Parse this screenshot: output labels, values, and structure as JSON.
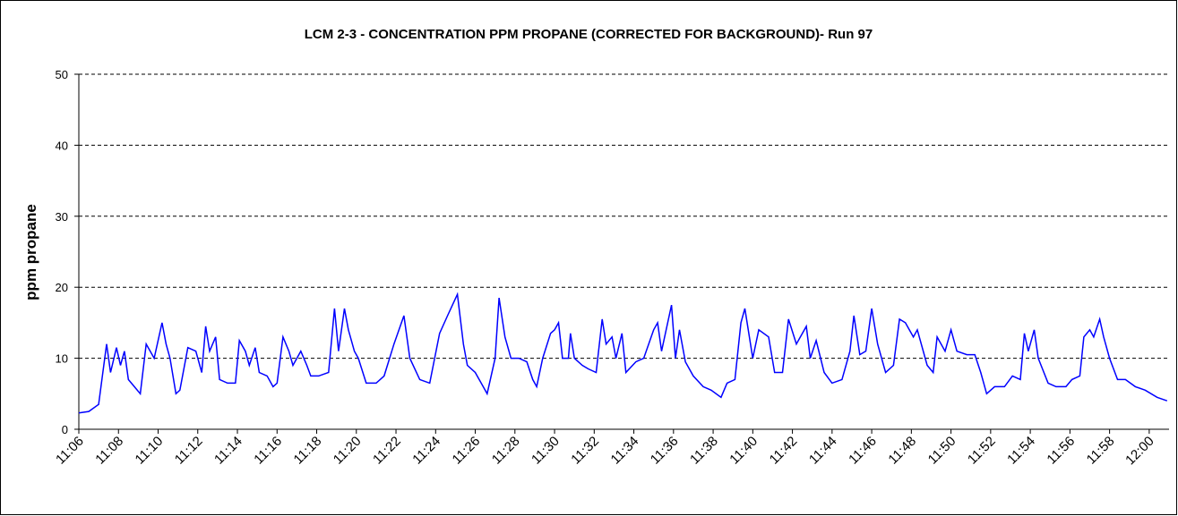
{
  "chart_data": {
    "type": "line",
    "title": "LCM 2-3 - CONCENTRATION PPM PROPANE (CORRECTED FOR BACKGROUND)- Run 97",
    "ylabel": "ppm propane",
    "color": "#0000ff",
    "grid": true,
    "ylim": [
      0,
      50
    ],
    "yticks": [
      0,
      10,
      20,
      30,
      40,
      50
    ],
    "xlim": [
      666,
      721
    ],
    "xticks": [
      {
        "value": 666,
        "label": "11:06"
      },
      {
        "value": 668,
        "label": "11:08"
      },
      {
        "value": 670,
        "label": "11:10"
      },
      {
        "value": 672,
        "label": "11:12"
      },
      {
        "value": 674,
        "label": "11:14"
      },
      {
        "value": 676,
        "label": "11:16"
      },
      {
        "value": 678,
        "label": "11:18"
      },
      {
        "value": 680,
        "label": "11:20"
      },
      {
        "value": 682,
        "label": "11:22"
      },
      {
        "value": 684,
        "label": "11:24"
      },
      {
        "value": 686,
        "label": "11:26"
      },
      {
        "value": 688,
        "label": "11:28"
      },
      {
        "value": 690,
        "label": "11:30"
      },
      {
        "value": 692,
        "label": "11:32"
      },
      {
        "value": 694,
        "label": "11:34"
      },
      {
        "value": 696,
        "label": "11:36"
      },
      {
        "value": 698,
        "label": "11:38"
      },
      {
        "value": 700,
        "label": "11:40"
      },
      {
        "value": 702,
        "label": "11:42"
      },
      {
        "value": 704,
        "label": "11:44"
      },
      {
        "value": 706,
        "label": "11:46"
      },
      {
        "value": 708,
        "label": "11:48"
      },
      {
        "value": 710,
        "label": "11:50"
      },
      {
        "value": 712,
        "label": "11:52"
      },
      {
        "value": 714,
        "label": "11:54"
      },
      {
        "value": 716,
        "label": "11:56"
      },
      {
        "value": 718,
        "label": "11:58"
      },
      {
        "value": 720,
        "label": "12:00"
      }
    ],
    "x": [
      666,
      666.5,
      667,
      667.4,
      667.6,
      667.9,
      668.1,
      668.3,
      668.5,
      668.8,
      669.1,
      669.4,
      669.8,
      670.2,
      670.4,
      670.6,
      670.9,
      671.1,
      671.5,
      671.9,
      672.2,
      672.4,
      672.6,
      672.9,
      673.1,
      673.5,
      673.9,
      674.1,
      674.4,
      674.6,
      674.9,
      675.1,
      675.5,
      675.8,
      676,
      676.3,
      676.6,
      676.8,
      677.2,
      677.5,
      677.7,
      678.1,
      678.6,
      678.9,
      679.1,
      679.4,
      679.6,
      679.9,
      680.1,
      680.5,
      681,
      681.4,
      681.9,
      682.4,
      682.7,
      683.2,
      683.7,
      684.2,
      684.6,
      685.1,
      685.4,
      685.6,
      686,
      686.4,
      686.6,
      687,
      687.2,
      687.5,
      687.8,
      688.2,
      688.6,
      688.9,
      689.1,
      689.4,
      689.8,
      690,
      690.2,
      690.4,
      690.7,
      690.8,
      691,
      691.4,
      691.7,
      692.1,
      692.4,
      692.6,
      692.9,
      693.1,
      693.4,
      693.6,
      694.1,
      694.5,
      695,
      695.2,
      695.4,
      695.9,
      696.1,
      696.3,
      696.6,
      697,
      697.5,
      697.9,
      698.4,
      698.7,
      699.1,
      699.4,
      699.6,
      700,
      700.3,
      700.8,
      701.1,
      701.5,
      701.8,
      702.2,
      702.7,
      702.9,
      703.2,
      703.6,
      704,
      704.5,
      704.9,
      705.1,
      705.4,
      705.7,
      706,
      706.3,
      706.7,
      707.1,
      707.4,
      707.7,
      708.1,
      708.3,
      708.8,
      709.1,
      709.3,
      709.7,
      710,
      710.3,
      710.8,
      711.2,
      711.5,
      711.8,
      712.2,
      712.7,
      713.1,
      713.5,
      713.7,
      713.9,
      714.2,
      714.4,
      714.9,
      715.3,
      715.8,
      716.1,
      716.5,
      716.7,
      717,
      717.2,
      717.5,
      717.7,
      718,
      718.4,
      718.8,
      719.3,
      719.8,
      720.4,
      720.9
    ],
    "values": [
      2.3,
      2.5,
      3.5,
      12,
      8,
      11.5,
      9,
      11,
      7,
      6,
      5,
      12,
      10,
      15,
      12,
      10,
      5,
      5.5,
      11.5,
      11,
      8,
      14.5,
      11,
      13,
      7,
      6.5,
      6.5,
      12.5,
      11,
      9,
      11.5,
      8,
      7.5,
      6,
      6.5,
      13,
      11,
      9,
      11,
      9,
      7.5,
      7.5,
      8,
      17,
      11,
      17,
      14,
      11,
      10,
      6.5,
      6.5,
      7.5,
      12,
      16,
      10,
      7,
      6.5,
      13.5,
      16,
      19,
      12,
      9,
      8,
      6,
      5,
      10,
      18.5,
      13,
      10,
      10,
      9.5,
      7,
      6,
      10,
      13.5,
      14,
      15,
      10,
      10,
      13.5,
      10,
      9,
      8.5,
      8,
      15.5,
      12,
      13,
      10,
      13.5,
      8,
      9.5,
      10,
      14,
      15,
      11,
      17.5,
      10,
      14,
      9.5,
      7.5,
      6,
      5.5,
      4.5,
      6.5,
      7,
      15,
      17,
      10,
      14,
      13,
      8,
      8,
      15.5,
      12,
      14.5,
      10,
      12.5,
      8,
      6.5,
      7,
      11,
      16,
      10.5,
      11,
      17,
      12,
      8,
      9,
      15.5,
      15,
      13,
      14,
      9,
      8,
      13,
      11,
      14,
      11,
      10.5,
      10.5,
      8,
      5,
      6,
      6,
      7.5,
      7,
      13.5,
      11,
      14,
      10,
      6.5,
      6,
      6,
      7,
      7.5,
      13,
      14,
      13,
      15.5,
      13,
      10,
      7,
      7,
      6,
      5.5,
      4.5,
      4
    ]
  }
}
